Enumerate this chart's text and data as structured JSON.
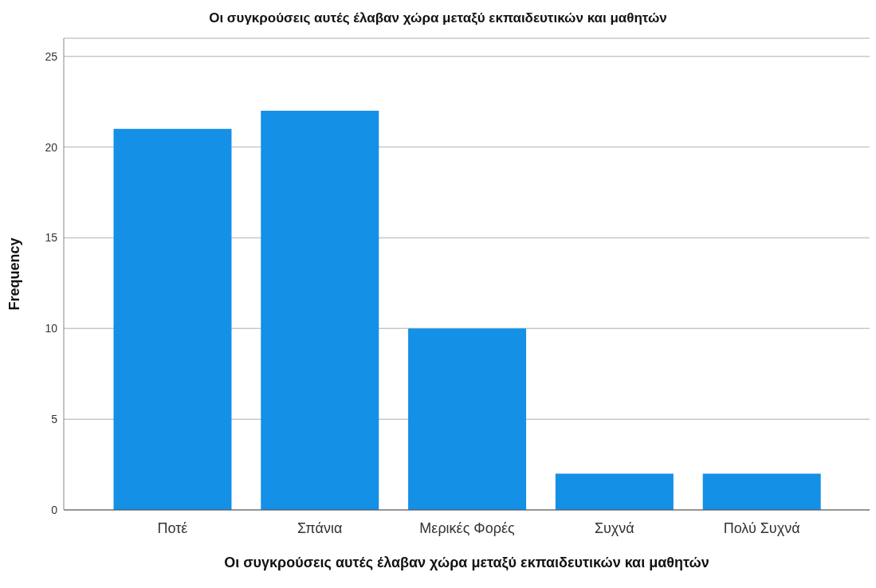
{
  "chart_data": {
    "type": "bar",
    "title": "Οι συγκρούσεις αυτές έλαβαν χώρα μεταξύ εκπαιδευτικών και μαθητών",
    "xlabel": "Οι συγκρούσεις αυτές έλαβαν χώρα μεταξύ εκπαιδευτικών και μαθητών",
    "ylabel": "Frequency",
    "categories": [
      "Ποτέ",
      "Σπάνια",
      "Μερικές Φορές",
      "Συχνά",
      "Πολύ Συχνά"
    ],
    "values": [
      21,
      22,
      10,
      2,
      2
    ],
    "color": "#1490e6",
    "ylim": [
      0,
      26
    ],
    "yticks": [
      0,
      5,
      10,
      15,
      20,
      25
    ],
    "grid": "y"
  }
}
